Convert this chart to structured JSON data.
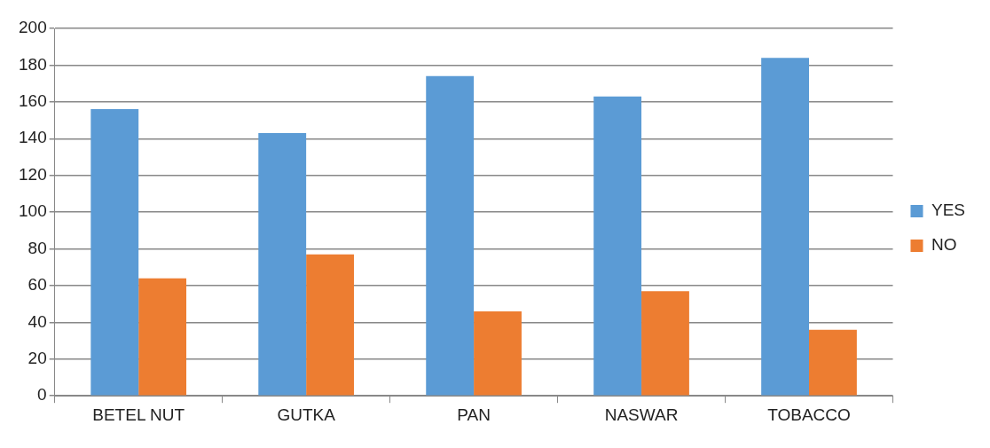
{
  "chart_data": {
    "type": "bar",
    "categories": [
      "BETEL NUT",
      "GUTKA",
      "PAN",
      "NASWAR",
      "TOBACCO"
    ],
    "series": [
      {
        "name": "YES",
        "color": "#5b9bd5",
        "values": [
          156,
          143,
          174,
          163,
          184
        ]
      },
      {
        "name": "NO",
        "color": "#ed7d31",
        "values": [
          64,
          77,
          46,
          57,
          36
        ]
      }
    ],
    "ylim": [
      0,
      200
    ],
    "yticks": [
      0,
      20,
      40,
      60,
      80,
      100,
      120,
      140,
      160,
      180,
      200
    ],
    "grid": "y",
    "legend": "right"
  }
}
